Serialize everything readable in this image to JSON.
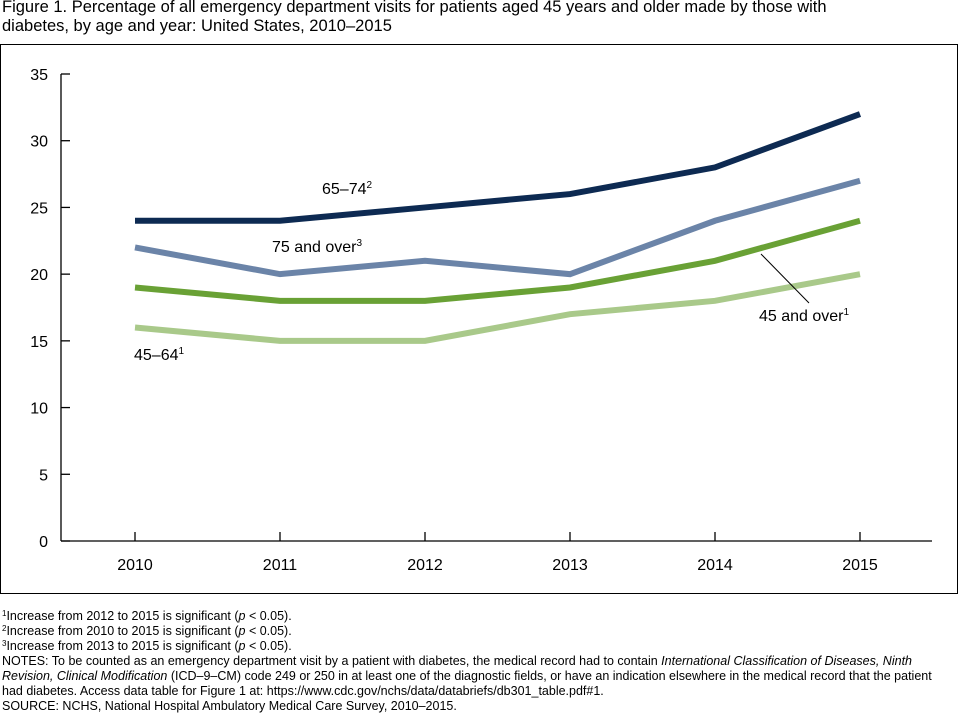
{
  "figure": {
    "title_line1": "Figure 1. Percentage of all emergency department visits for patients aged 45 years and older made by those with",
    "title_line2": "diabetes, by age and year: United States, 2010–2015"
  },
  "chart_data": {
    "type": "line",
    "x": [
      "2010",
      "2011",
      "2012",
      "2013",
      "2014",
      "2015"
    ],
    "yticks": [
      "0",
      "5",
      "10",
      "15",
      "20",
      "25",
      "30",
      "35"
    ],
    "ylim": [
      0,
      35
    ],
    "grid": false,
    "xlabel": "",
    "ylabel": "",
    "colors": {
      "s65_74": "#0d2a52",
      "s75_over": "#6b84a8",
      "s45_over": "#69a135",
      "s45_64": "#a9c98a"
    },
    "series": [
      {
        "key": "s65_74",
        "name": "65–74",
        "sup": "2",
        "values": [
          24,
          24,
          25,
          26,
          28,
          32
        ]
      },
      {
        "key": "s75_over",
        "name": "75 and over",
        "sup": "3",
        "values": [
          22,
          20,
          21,
          20,
          24,
          27
        ]
      },
      {
        "key": "s45_over",
        "name": "45 and over",
        "sup": "1",
        "values": [
          19,
          18,
          18,
          19,
          21,
          24
        ]
      },
      {
        "key": "s45_64",
        "name": "45–64",
        "sup": "1",
        "values": [
          16,
          15,
          15,
          17,
          18,
          20
        ]
      }
    ]
  },
  "footnotes": {
    "n1_sup": "1",
    "n1_a": "Increase from 2012 to 2015 is significant (",
    "n1_p": "p",
    "n1_b": " < 0.05).",
    "n2_sup": "2",
    "n2_a": "Increase from 2010 to 2015 is significant (",
    "n2_p": "p",
    "n2_b": " < 0.05).",
    "n3_sup": "3",
    "n3_a": "Increase from 2013 to 2015 is significant (",
    "n3_p": "p",
    "n3_b": " < 0.05).",
    "notes_a": "NOTES: To be counted as an emergency department visit by a patient with diabetes, the medical record had to contain ",
    "notes_i1": "International Classification of Diseases, Ninth Revision, Clinical Modification",
    "notes_b": " (ICD–9–CM) code 249 or 250 in at least one of the diagnostic fields, or have an indication elsewhere in the medical record that the patient had diabetes. Access data table for Figure 1 at: https://www.cdc.gov/nchs/data/databriefs/db301_table.pdf#1.",
    "source": "SOURCE: NCHS, National Hospital Ambulatory Medical Care Survey, 2010–2015."
  }
}
